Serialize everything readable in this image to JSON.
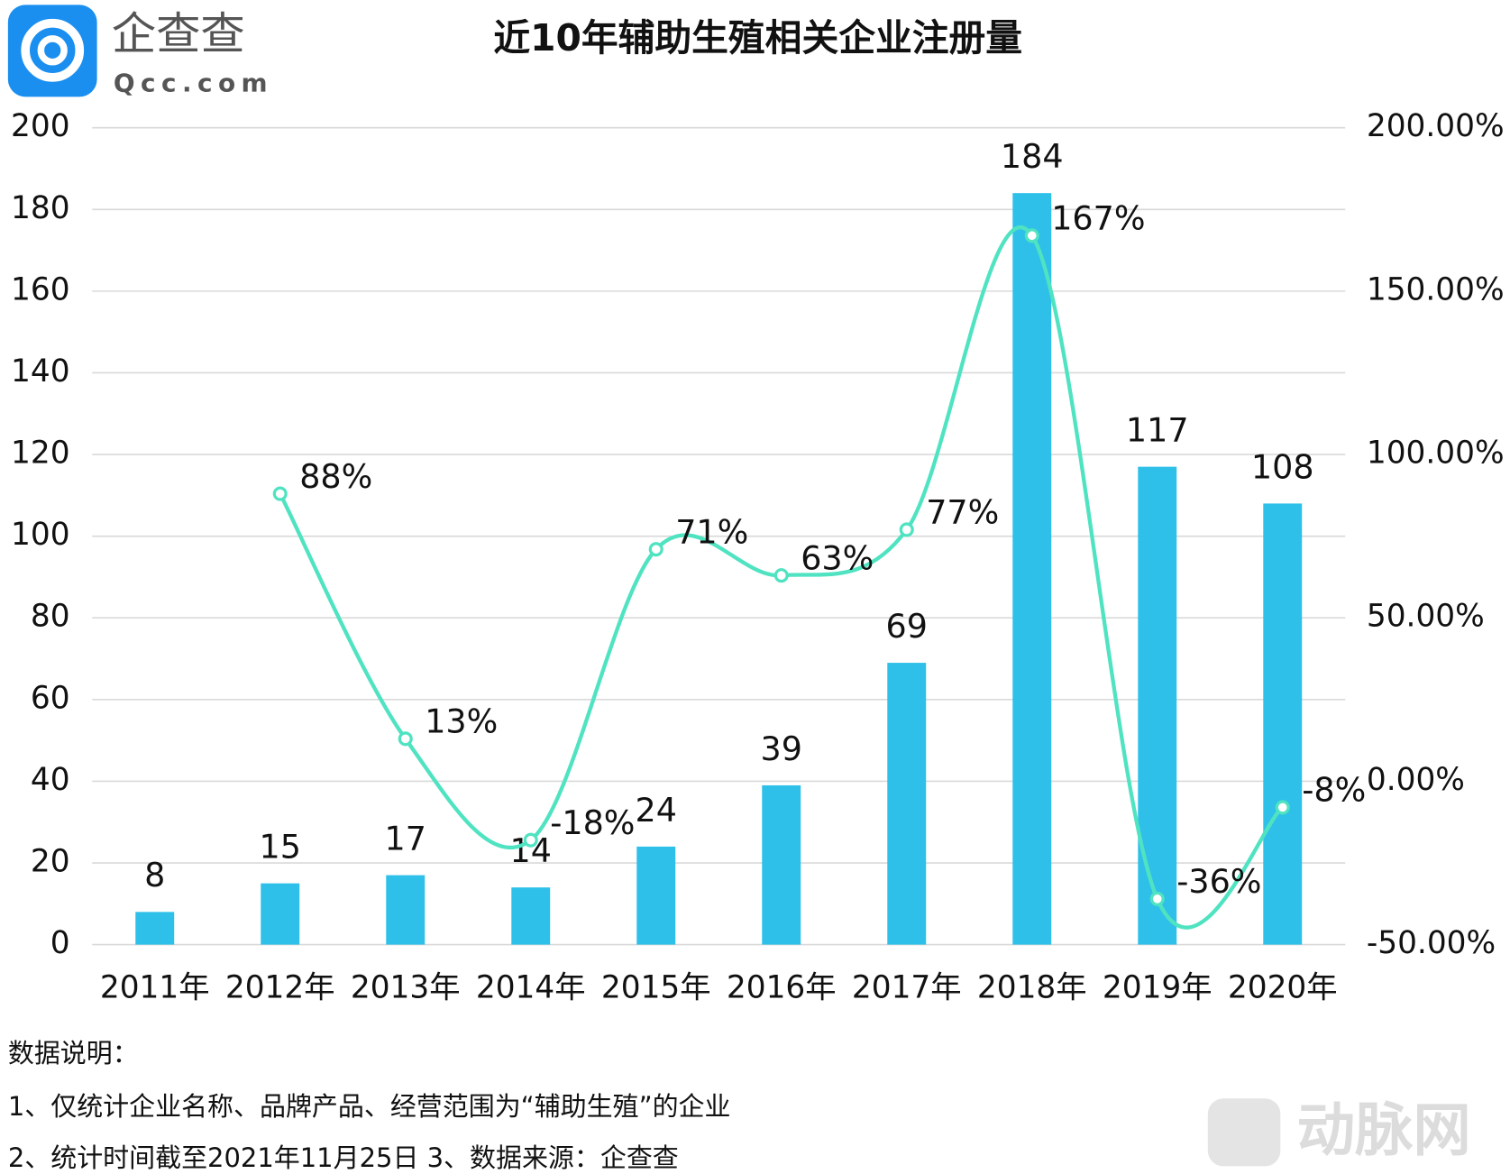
{
  "logo": {
    "name": "企查查",
    "domain": "Qcc.com"
  },
  "chart_data": {
    "type": "bar",
    "title": "近10年辅助生殖相关企业注册量",
    "categories": [
      "2011年",
      "2012年",
      "2013年",
      "2014年",
      "2015年",
      "2016年",
      "2017年",
      "2018年",
      "2019年",
      "2020年"
    ],
    "series": [
      {
        "type": "bar",
        "color": "#2ec0e8",
        "values": [
          8,
          15,
          17,
          14,
          24,
          39,
          69,
          184,
          117,
          108
        ]
      },
      {
        "type": "line",
        "axis": "y2",
        "color": "#4fe3c1",
        "values": [
          null,
          88,
          13,
          -18,
          71,
          63,
          77,
          167,
          -36,
          -8
        ],
        "value_labels": [
          null,
          "88%",
          "13%",
          "-18%",
          "71%",
          "63%",
          "77%",
          "167%",
          "-36%",
          "-8%"
        ]
      }
    ],
    "ylim": [
      0,
      200
    ],
    "yticks": [
      0,
      20,
      40,
      60,
      80,
      100,
      120,
      140,
      160,
      180,
      200
    ],
    "y2lim": [
      -50,
      200
    ],
    "y2ticks": [
      {
        "value": -50,
        "label": "-50.00%"
      },
      {
        "value": 0,
        "label": "0.00%"
      },
      {
        "value": 50,
        "label": "50.00%"
      },
      {
        "value": 100,
        "label": "100.00%"
      },
      {
        "value": 150,
        "label": "150.00%"
      },
      {
        "value": 200,
        "label": "200.00%"
      }
    ],
    "grid": true
  },
  "notes": [
    "数据说明：",
    "1、仅统计企业名称、品牌产品、经营范围为“辅助生殖”的企业",
    "2、统计时间截至2021年11月25日   3、数据来源：企查查"
  ],
  "watermark": "动脉网"
}
